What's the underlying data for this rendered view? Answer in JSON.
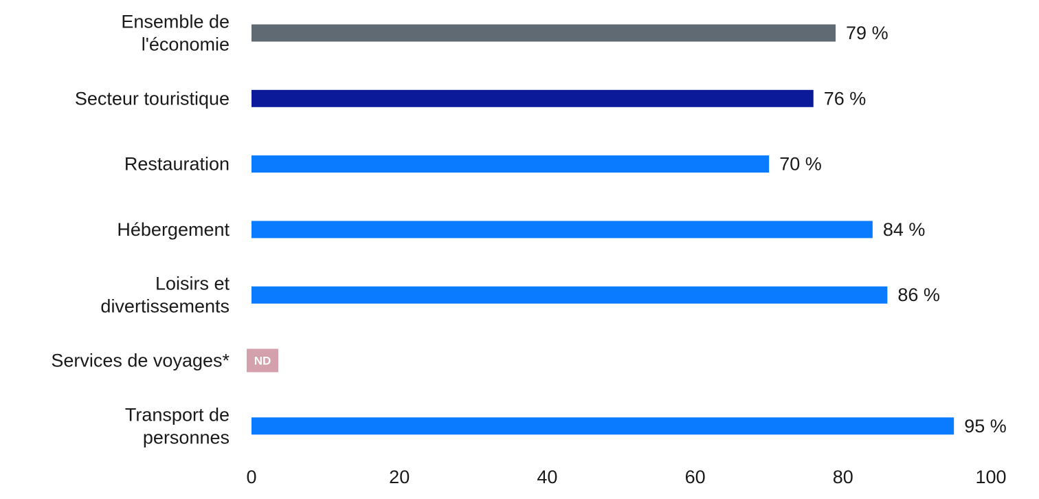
{
  "chart_data": {
    "type": "bar",
    "orientation": "horizontal",
    "categories": [
      [
        "Ensemble de",
        "l'économie"
      ],
      [
        "Secteur touristique"
      ],
      [
        "Restauration"
      ],
      [
        "Hébergement"
      ],
      [
        "Loisirs et",
        "divertissements"
      ],
      [
        "Services de voyages*"
      ],
      [
        "Transport de",
        "personnes"
      ]
    ],
    "values": [
      79,
      76,
      70,
      84,
      86,
      null,
      95
    ],
    "value_labels": [
      "79 %",
      "76 %",
      "70 %",
      "84 %",
      "86 %",
      "ND",
      "95 %"
    ],
    "bar_colors": [
      "#5f6a72",
      "#0a1a99",
      "#0a7bff",
      "#0a7bff",
      "#0a7bff",
      "#d4a0ab",
      "#0a7bff"
    ],
    "xlim": [
      0,
      100
    ],
    "xticks": [
      0,
      20,
      40,
      60,
      80,
      100
    ],
    "grid": false,
    "legend": "none"
  }
}
